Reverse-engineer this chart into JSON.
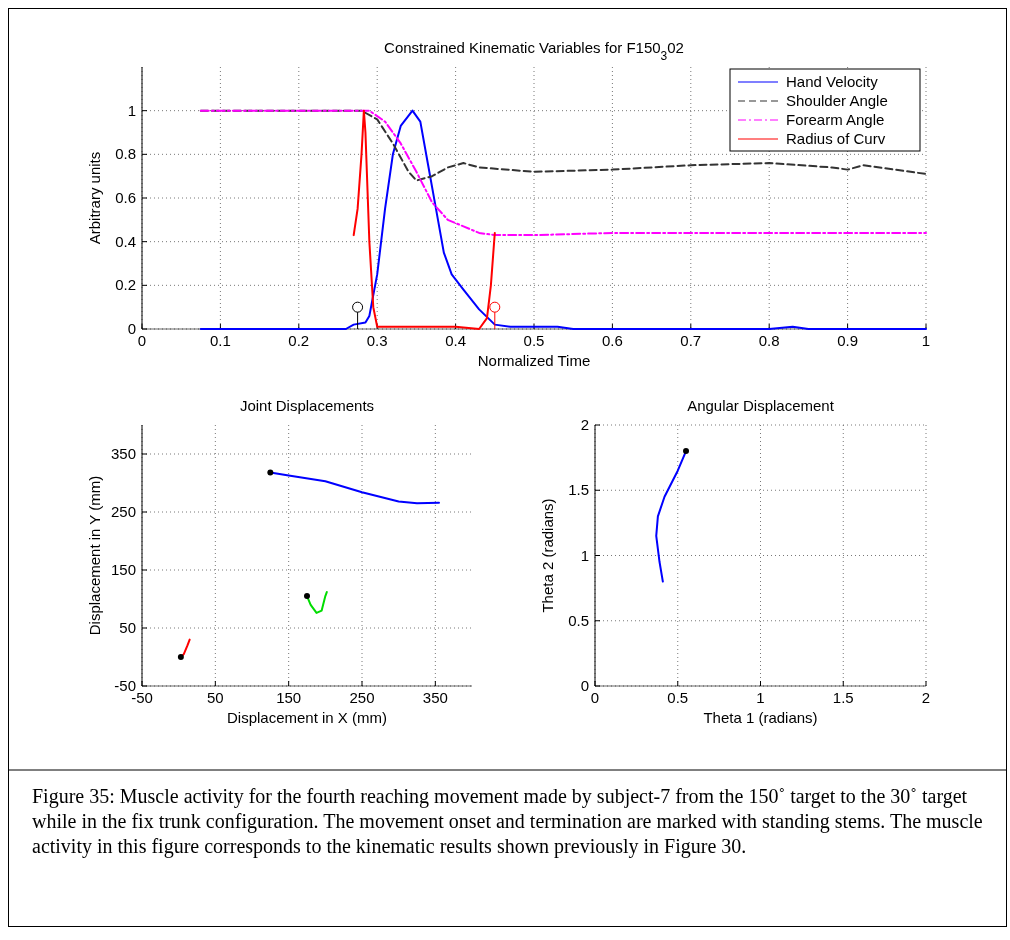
{
  "chart_data": [
    {
      "type": "line",
      "title": "Constrained Kinematic Variables for F150$_{3}$02",
      "xlabel": "Normalized Time",
      "ylabel": "Arbitrary units",
      "xlim": [
        0,
        1
      ],
      "ylim": [
        0,
        1.2
      ],
      "xticks": [
        0,
        0.1,
        0.2,
        0.3,
        0.4,
        0.5,
        0.6,
        0.7,
        0.8,
        0.9,
        1
      ],
      "yticks": [
        0,
        0.2,
        0.4,
        0.6,
        0.8,
        1
      ],
      "grid": true,
      "legend": "top right",
      "series": [
        {
          "name": "Hand Velocity",
          "color": "#0000ff",
          "line_style": "solid",
          "x": [
            0.075,
            0.26,
            0.27,
            0.285,
            0.29,
            0.3,
            0.31,
            0.32,
            0.33,
            0.345,
            0.355,
            0.365,
            0.375,
            0.385,
            0.395,
            0.41,
            0.43,
            0.45,
            0.47,
            0.5,
            0.53,
            0.55,
            0.8,
            0.83,
            0.85,
            1
          ],
          "values": [
            0,
            0,
            0.02,
            0.03,
            0.06,
            0.25,
            0.55,
            0.8,
            0.93,
            1,
            0.95,
            0.75,
            0.55,
            0.35,
            0.25,
            0.18,
            0.09,
            0.02,
            0.01,
            0.01,
            0.01,
            0,
            0,
            0.01,
            0,
            0
          ]
        },
        {
          "name": "Shoulder Angle",
          "color": "#333333",
          "line_style": "dashed",
          "x": [
            0.075,
            0.28,
            0.3,
            0.32,
            0.34,
            0.35,
            0.37,
            0.39,
            0.41,
            0.43,
            0.5,
            0.6,
            0.7,
            0.8,
            0.88,
            0.9,
            0.92,
            0.96,
            1
          ],
          "values": [
            1,
            1,
            0.96,
            0.85,
            0.72,
            0.68,
            0.7,
            0.74,
            0.76,
            0.74,
            0.72,
            0.73,
            0.75,
            0.76,
            0.74,
            0.73,
            0.75,
            0.73,
            0.71
          ]
        },
        {
          "name": "Forearm Angle",
          "color": "#ff00ff",
          "line_style": "dashdot",
          "x": [
            0.075,
            0.29,
            0.31,
            0.33,
            0.35,
            0.37,
            0.39,
            0.41,
            0.43,
            0.45,
            0.5,
            0.6,
            1
          ],
          "values": [
            1,
            1,
            0.95,
            0.85,
            0.72,
            0.58,
            0.5,
            0.47,
            0.44,
            0.43,
            0.43,
            0.44,
            0.44
          ]
        },
        {
          "name": "Radius of Curv",
          "color": "#ff0000",
          "line_style": "solid",
          "x": [
            0.27,
            0.275,
            0.28,
            0.283,
            0.285,
            0.29,
            0.295,
            0.3,
            0.4,
            0.43,
            0.44,
            0.445,
            0.45
          ],
          "values": [
            0.43,
            0.55,
            0.8,
            1,
            0.9,
            0.4,
            0.1,
            0.01,
            0.01,
            0,
            0.05,
            0.2,
            0.44
          ]
        },
        {
          "type": "lollipop",
          "color": "#000000",
          "x": [
            0.275
          ],
          "values": [
            0.1
          ]
        },
        {
          "type": "lollipop",
          "color": "#ff0000",
          "x": [
            0.45
          ],
          "values": [
            0.1
          ]
        }
      ],
      "annotations": [
        "Figure 35: Muscle activity for the fourth reaching movement made by subject-7 from the 150˚ target to the 30˚ target while in the fix trunk configuration. The movement onset and termination are marked with standing stems. The muscle activity in this figure corresponds to the kinematic results shown previously in Figure 30."
      ]
    },
    {
      "type": "line",
      "title": "Joint Displacements",
      "xlabel": "Displacement in X (mm)",
      "ylabel": "Displacement in Y (mm)",
      "xlim": [
        -50,
        400
      ],
      "ylim": [
        -50,
        400
      ],
      "xticks": [
        -50,
        50,
        150,
        250,
        350
      ],
      "yticks": [
        -50,
        50,
        150,
        250,
        350
      ],
      "grid": true,
      "series": [
        {
          "color": "#0000ff",
          "x": [
            125,
            150,
            200,
            250,
            300,
            325,
            355
          ],
          "values": [
            318,
            313,
            303,
            284,
            268,
            265,
            266
          ]
        },
        {
          "color": "#00dd00",
          "x": [
            175,
            180,
            188,
            195,
            200,
            202
          ],
          "values": [
            105,
            90,
            76,
            80,
            105,
            112
          ]
        },
        {
          "color": "#ff0000",
          "x": [
            3,
            7,
            12,
            15
          ],
          "values": [
            0,
            5,
            20,
            30
          ]
        },
        {
          "type": "scatter",
          "marker": "circle",
          "color": "#000000",
          "x": [
            125,
            175,
            3
          ],
          "values": [
            318,
            105,
            0
          ]
        }
      ]
    },
    {
      "type": "line",
      "title": "Angular Displacement",
      "xlabel": "Theta 1 (radians)",
      "ylabel": "Theta 2 (radians)",
      "xlim": [
        0,
        2
      ],
      "ylim": [
        0,
        2
      ],
      "xticks": [
        0,
        0.5,
        1,
        1.5,
        2
      ],
      "yticks": [
        0,
        0.5,
        1,
        1.5,
        2
      ],
      "grid": true,
      "series": [
        {
          "color": "#0000ff",
          "x": [
            0.55,
            0.5,
            0.42,
            0.38,
            0.37,
            0.39,
            0.41
          ],
          "values": [
            1.8,
            1.65,
            1.45,
            1.3,
            1.15,
            0.95,
            0.8
          ]
        },
        {
          "type": "scatter",
          "marker": "circle",
          "color": "#000000",
          "x": [
            0.55
          ],
          "values": [
            1.8
          ]
        }
      ]
    }
  ]
}
